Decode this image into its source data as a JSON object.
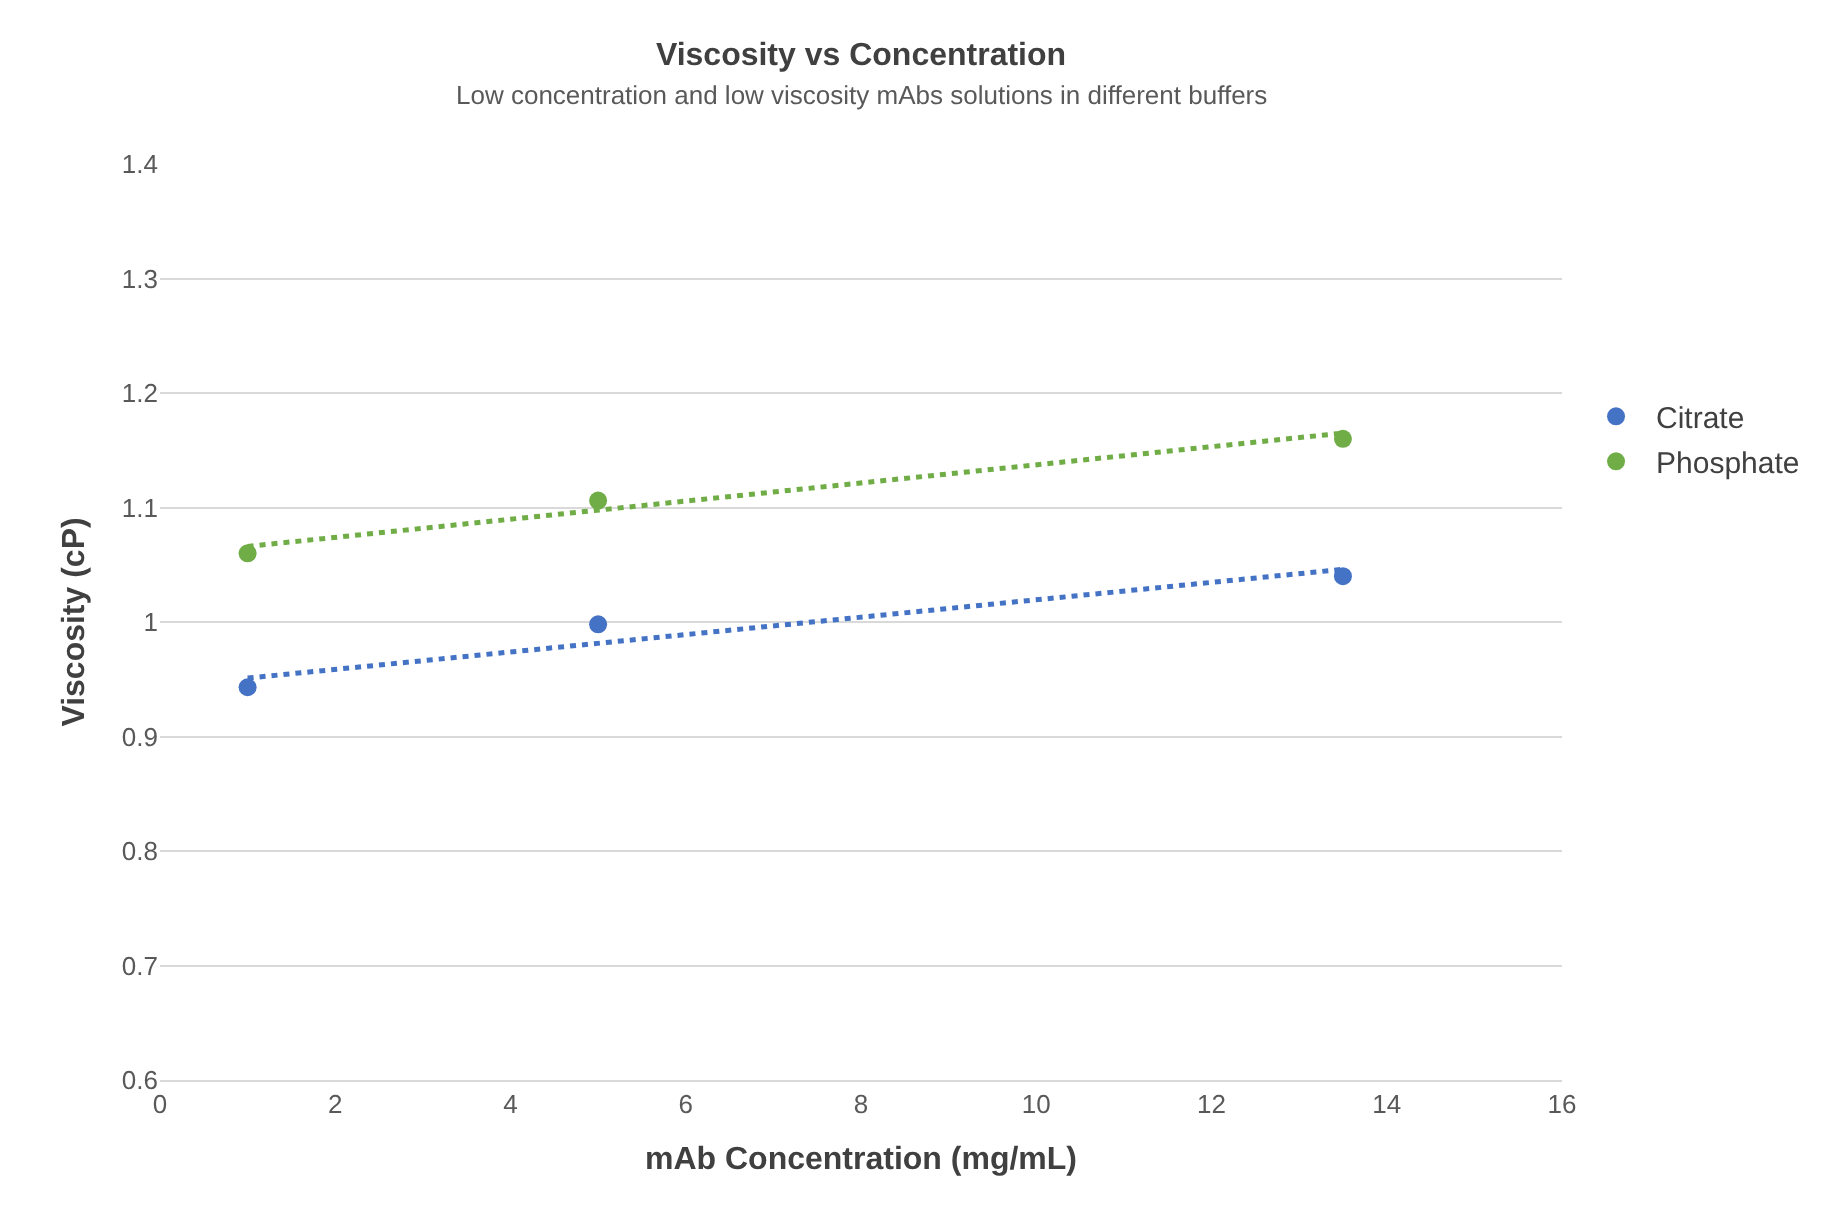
{
  "chart_data": {
    "type": "scatter",
    "title": "Viscosity vs Concentration",
    "subtitle": "Low concentration and low viscosity mAbs solutions in different buffers",
    "xlabel": "mAb Concentration (mg/mL)",
    "ylabel": "Viscosity (cP)",
    "xlim": [
      0,
      16
    ],
    "xticks": [
      0,
      2,
      4,
      6,
      8,
      10,
      12,
      14,
      16
    ],
    "ylim": [
      0.6,
      1.4
    ],
    "yticks": [
      0.6,
      0.7,
      0.8,
      0.9,
      {
        "value": 1,
        "label": "1"
      },
      1.1,
      1.2,
      1.3,
      1.4
    ],
    "grid": "y",
    "legend": "right",
    "series": [
      {
        "name": "Citrate",
        "color": "#4472c4",
        "marker": "circle",
        "x": [
          1,
          5,
          13.5
        ],
        "values": [
          0.943,
          0.998,
          1.04
        ]
      },
      {
        "name": "Phosphate",
        "color": "#70ad47",
        "marker": "circle",
        "x": [
          1,
          5,
          13.5
        ],
        "values": [
          1.06,
          1.106,
          1.16
        ]
      },
      {
        "type": "line",
        "color": "#4472c4",
        "line_style": "dotted",
        "marker": "none",
        "x": [
          1,
          13.5
        ],
        "values": [
          0.951,
          1.046
        ]
      },
      {
        "type": "line",
        "color": "#70ad47",
        "line_style": "dotted",
        "marker": "none",
        "x": [
          1,
          13.5
        ],
        "values": [
          1.066,
          1.165
        ]
      }
    ]
  }
}
